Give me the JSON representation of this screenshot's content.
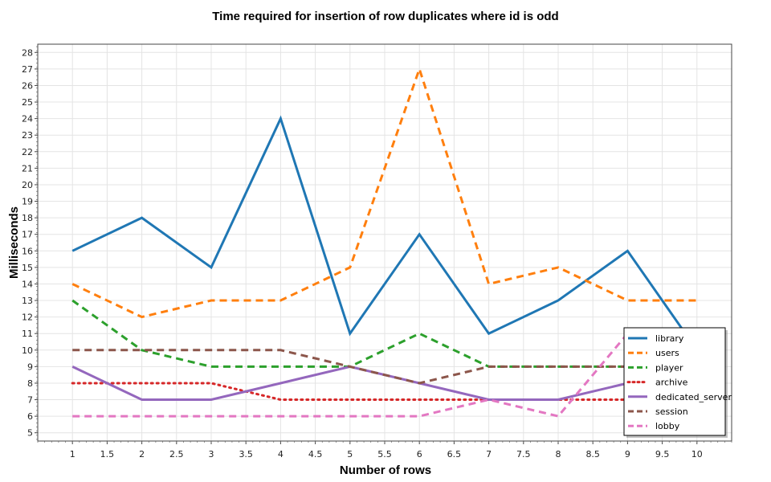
{
  "chart_data": {
    "type": "line",
    "title": "Time required for insertion of row duplicates where id is odd",
    "xlabel": "Number of rows",
    "ylabel": "Milliseconds",
    "xlim": [
      0.5,
      10.5
    ],
    "ylim": [
      4.5,
      28.5
    ],
    "xticks": [
      "1",
      "1.5",
      "2",
      "2.5",
      "3",
      "3.5",
      "4",
      "4.5",
      "5",
      "5.5",
      "6",
      "6.5",
      "7",
      "7.5",
      "8",
      "8.5",
      "9",
      "9.5",
      "10"
    ],
    "yticks": [
      "5",
      "6",
      "7",
      "8",
      "9",
      "10",
      "11",
      "12",
      "13",
      "14",
      "15",
      "16",
      "17",
      "18",
      "19",
      "20",
      "21",
      "22",
      "23",
      "24",
      "25",
      "26",
      "27",
      "28"
    ],
    "grid": true,
    "legend_position": "bottom-right",
    "x": [
      1,
      2,
      3,
      4,
      5,
      6,
      7,
      8,
      9,
      10
    ],
    "series": [
      {
        "name": "library",
        "color": "#1f77b4",
        "dash": "solid",
        "values": [
          16,
          18,
          15,
          24,
          11,
          17,
          11,
          13,
          16,
          10
        ]
      },
      {
        "name": "users",
        "color": "#ff7f0e",
        "dash": "dashed",
        "values": [
          14,
          12,
          13,
          13,
          15,
          27,
          14,
          15,
          13,
          13
        ]
      },
      {
        "name": "player",
        "color": "#2ca02c",
        "dash": "dashed",
        "values": [
          13,
          10,
          9,
          9,
          9,
          11,
          9,
          9,
          9,
          9
        ]
      },
      {
        "name": "archive",
        "color": "#d62728",
        "dash": "dotted",
        "values": [
          8,
          8,
          8,
          7,
          7,
          7,
          7,
          7,
          7,
          7
        ]
      },
      {
        "name": "dedicated_server",
        "color": "#9467bd",
        "dash": "solid",
        "values": [
          9,
          7,
          7,
          8,
          9,
          8,
          7,
          7,
          8,
          8
        ]
      },
      {
        "name": "session",
        "color": "#8c564b",
        "dash": "dashed",
        "values": [
          10,
          10,
          10,
          10,
          9,
          8,
          9,
          9,
          9,
          9
        ]
      },
      {
        "name": "lobby",
        "color": "#e377c2",
        "dash": "dashed",
        "values": [
          6,
          6,
          6,
          6,
          6,
          6,
          7,
          6,
          11,
          11
        ]
      }
    ]
  }
}
